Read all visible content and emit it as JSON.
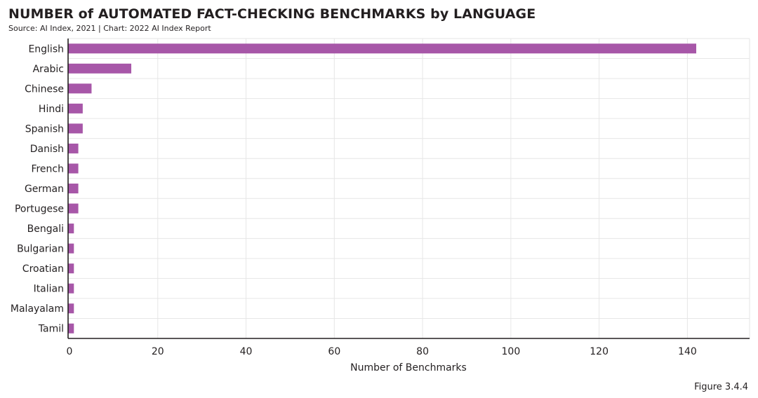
{
  "header": {
    "title": "NUMBER of AUTOMATED FACT-CHECKING BENCHMARKS by LANGUAGE",
    "subtitle": "Source: AI Index, 2021 | Chart: 2022 AI Index Report"
  },
  "footer": {
    "figure_label": "Figure 3.4.4"
  },
  "colors": {
    "bar": "#a757a8",
    "grid": "#e6e6e6",
    "axis": "#231f20"
  },
  "chart_data": {
    "type": "bar",
    "orientation": "horizontal",
    "title": "NUMBER of AUTOMATED FACT-CHECKING BENCHMARKS by LANGUAGE",
    "xlabel": "Number of Benchmarks",
    "ylabel": "",
    "xlim": [
      0,
      154
    ],
    "xticks": [
      0,
      20,
      40,
      60,
      80,
      100,
      120,
      140
    ],
    "grid": true,
    "legend": "none",
    "categories": [
      "English",
      "Arabic",
      "Chinese",
      "Hindi",
      "Spanish",
      "Danish",
      "French",
      "German",
      "Portugese",
      "Bengali",
      "Bulgarian",
      "Croatian",
      "Italian",
      "Malayalam",
      "Tamil"
    ],
    "values": [
      142,
      14,
      5,
      3,
      3,
      2,
      2,
      2,
      2,
      1,
      1,
      1,
      1,
      1,
      1
    ]
  }
}
